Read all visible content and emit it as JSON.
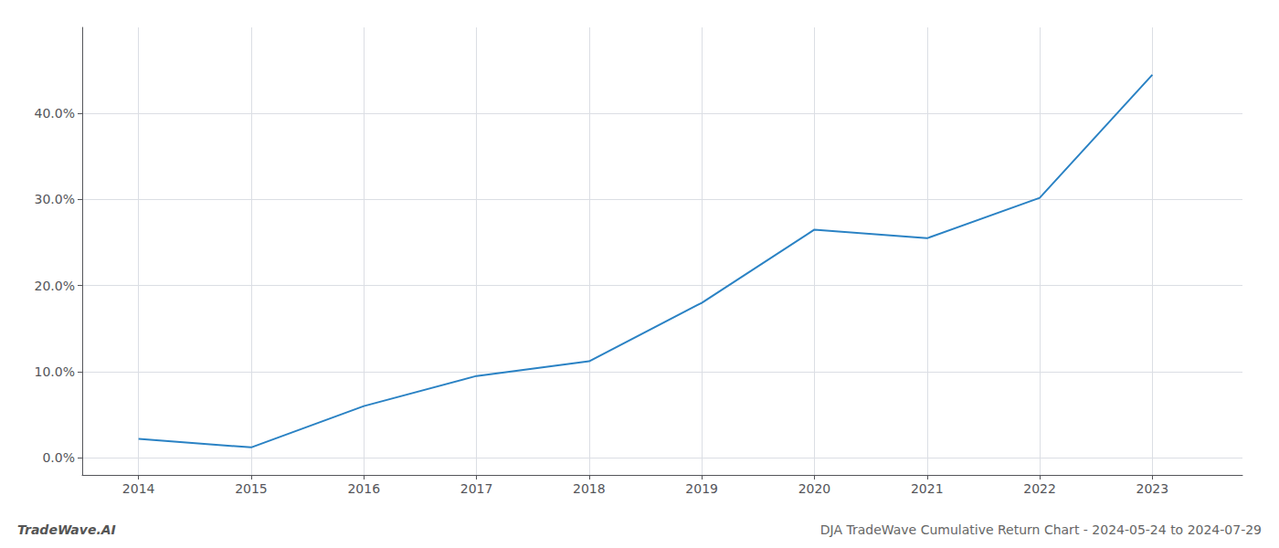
{
  "chart_data": {
    "type": "line",
    "title": "DJA TradeWave Cumulative Return Chart - 2024-05-24 to 2024-07-29",
    "annotations": [
      "TradeWave.AI"
    ],
    "x": [
      2014,
      2015,
      2016,
      2017,
      2018,
      2019,
      2020,
      2021,
      2022,
      2023
    ],
    "values": [
      2.2,
      1.2,
      6.0,
      9.5,
      11.2,
      18.0,
      26.5,
      25.5,
      30.2,
      44.5
    ],
    "color": "#2a82c4",
    "xlim": [
      2013.5,
      2023.8
    ],
    "xticks": [
      2014,
      2015,
      2016,
      2017,
      2018,
      2019,
      2020,
      2021,
      2022,
      2023
    ],
    "ylim": [
      -2,
      50
    ],
    "yticks": [
      {
        "value": 0.0,
        "label": "0.0%"
      },
      {
        "value": 10.0,
        "label": "10.0%"
      },
      {
        "value": 20.0,
        "label": "20.0%"
      },
      {
        "value": 30.0,
        "label": "30.0%"
      },
      {
        "value": 40.0,
        "label": "40.0%"
      }
    ],
    "grid": true
  }
}
